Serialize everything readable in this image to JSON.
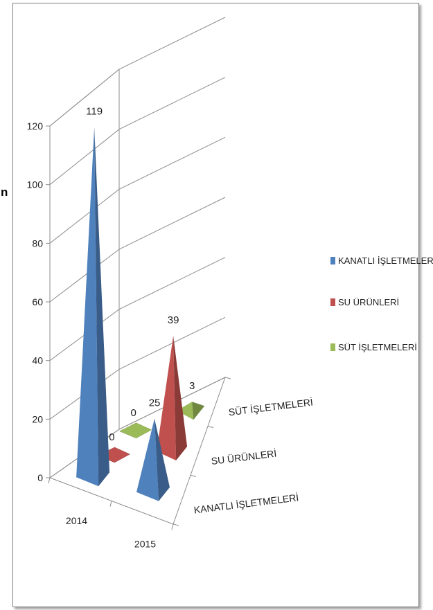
{
  "page": {
    "edge_glyph": "n"
  },
  "chart_data": {
    "type": "bar",
    "style": "3d-pyramid",
    "categories": [
      "2014",
      "2015"
    ],
    "series": [
      {
        "name": "KANATLI İŞLETMELERİ",
        "values": [
          119,
          25
        ],
        "color": "#4f81bd"
      },
      {
        "name": "SU ÜRÜNLERİ",
        "values": [
          0,
          39
        ],
        "color": "#c0504d"
      },
      {
        "name": "SÜT İŞLETMELERİ",
        "values": [
          0,
          3
        ],
        "color": "#9bbb59"
      }
    ],
    "depth_labels": [
      "KANATLI İŞLETMELERİ",
      "SU ÜRÜNLERİ",
      "SÜT İŞLETMELERİ"
    ],
    "y_ticks": [
      "0",
      "20",
      "40",
      "60",
      "80",
      "100",
      "120"
    ],
    "ylim": [
      0,
      120
    ],
    "title": "",
    "xlabel": "",
    "ylabel": "",
    "grid": true,
    "legend_position": "right"
  }
}
